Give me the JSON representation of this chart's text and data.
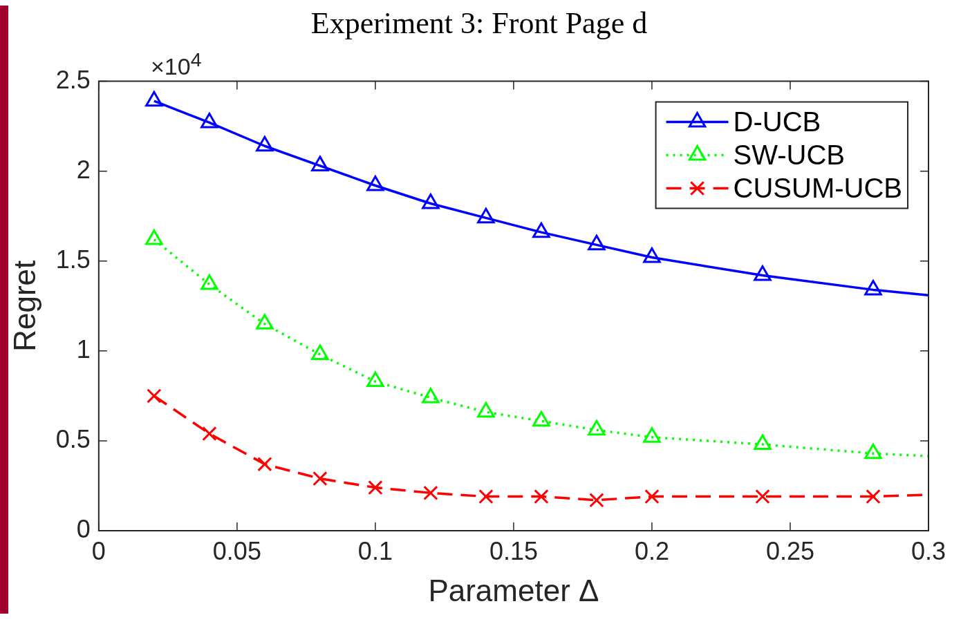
{
  "chart_data": {
    "type": "line",
    "title": "Experiment 3: Front Page d",
    "xlabel": "Parameter Δ",
    "ylabel": "Regret",
    "annotations": [
      "×10$^{4}$"
    ],
    "x": [
      0.02,
      0.04,
      0.06,
      0.08,
      0.1,
      0.12,
      0.14,
      0.16,
      0.18,
      0.2,
      0.24,
      0.28,
      0.3
    ],
    "series": [
      {
        "name": "D-UCB",
        "color": "#0000ff",
        "marker": "triangle",
        "line_style": "solid",
        "values": [
          2.39,
          2.27,
          2.14,
          2.03,
          1.92,
          1.82,
          1.74,
          1.66,
          1.59,
          1.52,
          1.42,
          1.34,
          1.31
        ]
      },
      {
        "name": "SW-UCB",
        "color": "#00ff00",
        "marker": "triangle",
        "line_style": "dotted",
        "values": [
          1.62,
          1.37,
          1.15,
          0.98,
          0.83,
          0.74,
          0.66,
          0.61,
          0.56,
          0.52,
          0.48,
          0.43,
          0.415
        ]
      },
      {
        "name": "CUSUM-UCB",
        "color": "#ff0000",
        "marker": "cross",
        "line_style": "dashed",
        "values": [
          0.75,
          0.54,
          0.37,
          0.29,
          0.24,
          0.21,
          0.19,
          0.19,
          0.17,
          0.19,
          0.19,
          0.19,
          0.2
        ]
      }
    ],
    "xlim": [
      0,
      0.3
    ],
    "xticks": [
      0,
      0.05,
      0.1,
      0.15,
      0.2,
      0.25,
      0.3
    ],
    "ylim": [
      0,
      2.5
    ],
    "yticks": [
      0,
      0.5,
      1,
      1.5,
      2,
      2.5
    ],
    "grid": false,
    "legend": "top right"
  }
}
